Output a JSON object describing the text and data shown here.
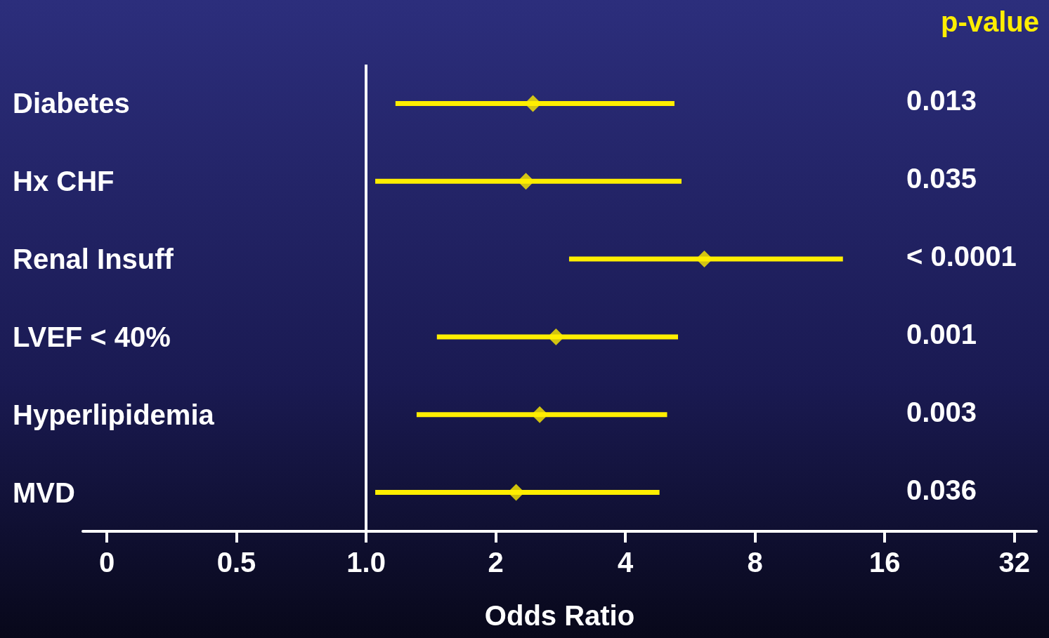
{
  "chart_data": {
    "type": "scatter",
    "orientation": "horizontal",
    "xlabel": "Odds Ratio",
    "categories": [
      "Diabetes",
      "Hx CHF",
      "Renal Insuff",
      "LVEF < 40%",
      "Hyperlipidemia",
      "MVD"
    ],
    "values": [
      2.44,
      2.35,
      6.1,
      2.76,
      2.53,
      2.23
    ],
    "errors": [
      [
        1.17,
        5.2
      ],
      [
        1.05,
        5.4
      ],
      [
        2.96,
        12.8
      ],
      [
        1.46,
        5.3
      ],
      [
        1.31,
        5.0
      ],
      [
        1.05,
        4.8
      ]
    ],
    "color": "#ffee00",
    "marker": "diamond",
    "log": "x",
    "xlim": [
      0.22,
      36
    ],
    "xticks": [
      {
        "value": 0.25,
        "label": "0"
      },
      0.5,
      {
        "value": 1,
        "label": "1.0"
      },
      2,
      4,
      8,
      16,
      32
    ],
    "ref_lines": [
      {
        "axis": "x",
        "value": 1,
        "color": "#ffffff"
      }
    ],
    "annotations": [
      "p-value",
      "0.013",
      "0.035",
      "< 0.0001",
      "0.001",
      "0.003",
      "0.036"
    ],
    "grid": false
  }
}
